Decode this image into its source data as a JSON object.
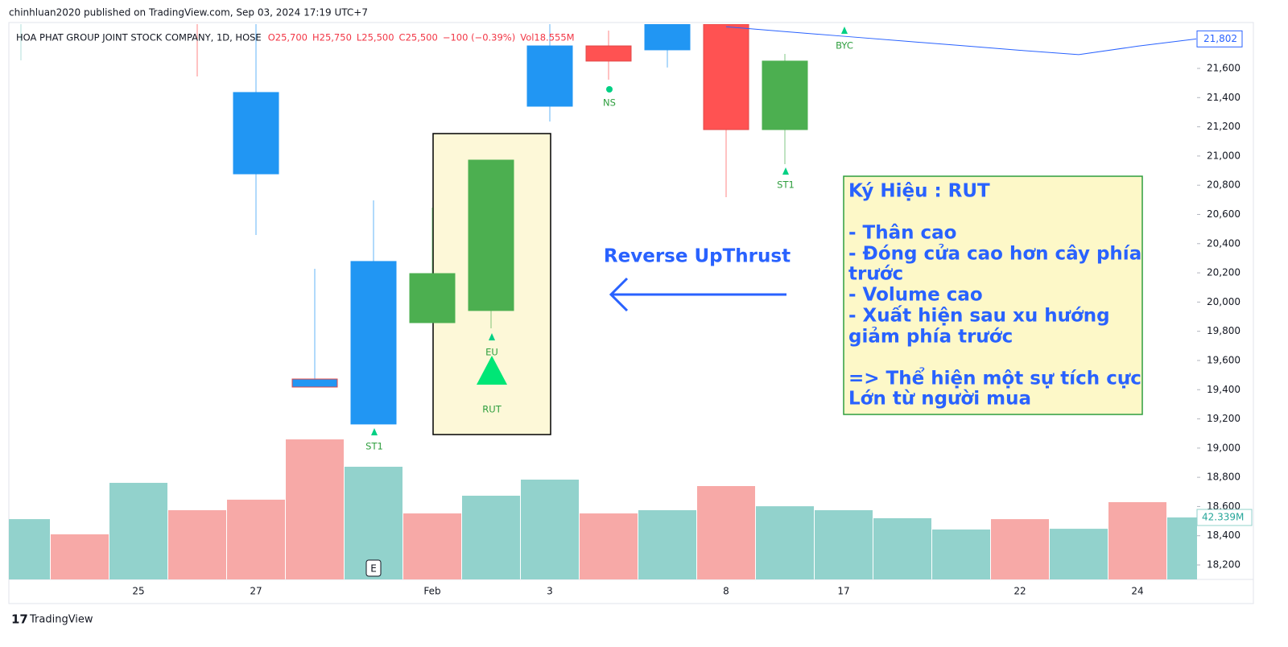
{
  "header": {
    "publisher": "chinhluan2020 published on TradingView.com, Sep 03, 2024 17:19 UTC+7",
    "brand": "TradingView"
  },
  "chart_data": {
    "type": "candlestick",
    "symbol": "HOA PHAT GROUP JOINT STOCK COMPANY, 1D, HOSE",
    "ohlc_legend": [
      "O25,700",
      "H25,750",
      "L25,500",
      "C25,500",
      "−100 (−0.39%)",
      "Vol18.555M"
    ],
    "categories": [
      null,
      null,
      "25",
      null,
      "27",
      null,
      null,
      "Feb",
      null,
      "3",
      null,
      null,
      "8",
      null,
      "17",
      null,
      null,
      "22",
      null,
      "24",
      null
    ],
    "open": [
      null,
      null,
      null,
      null,
      20878,
      19473,
      19165,
      19859,
      19942,
      21341,
      21754,
      21727,
      null,
      21181,
      null,
      null,
      null,
      null,
      null,
      null,
      null
    ],
    "high": [
      null,
      null,
      null,
      null,
      null,
      20228,
      20696,
      20647,
      20972,
      null,
      21859,
      null,
      null,
      21699,
      null,
      null,
      null,
      null,
      null,
      null,
      null
    ],
    "low": [
      21655,
      null,
      null,
      21545,
      20459,
      19418,
      19165,
      19859,
      19820,
      21236,
      21523,
      21606,
      20718,
      20944,
      null,
      null,
      null,
      null,
      null,
      null,
      null
    ],
    "close": [
      null,
      null,
      null,
      null,
      21435,
      19418,
      20278,
      20195,
      20972,
      21754,
      21650,
      null,
      21181,
      21650,
      null,
      null,
      null,
      null,
      null,
      null,
      null
    ],
    "candle_colors": [
      "#92d2cc",
      null,
      null,
      "#ff5252",
      "#2196f3",
      "#2196f3",
      "#2196f3",
      "#4caf50",
      "#4caf50",
      "#2196f3",
      "#ff5252",
      "#2196f3",
      "#ff5252",
      "#4caf50",
      null,
      null,
      null,
      null,
      null,
      null,
      null
    ],
    "line": {
      "color": "#2962ff",
      "values": [
        null,
        null,
        null,
        null,
        null,
        null,
        null,
        null,
        null,
        null,
        null,
        null,
        21885,
        21852,
        21820,
        21788,
        21756,
        21724,
        21694,
        21752,
        21802
      ],
      "value_labels": [
        null,
        null,
        null,
        null,
        null,
        null,
        null,
        null,
        null,
        null,
        null,
        null,
        null,
        null,
        null,
        null,
        null,
        null,
        null,
        null,
        "21,802"
      ]
    },
    "volume": {
      "values": [
        41.2,
        30.8,
        66.0,
        47.3,
        54.5,
        95.7,
        77.0,
        45.1,
        57.2,
        68.2,
        45.1,
        47.3,
        63.8,
        50.0,
        47.3,
        41.8,
        34.1,
        41.2,
        34.6,
        52.8,
        42.339
      ],
      "colors": [
        "#92d2cc",
        "#f7a9a7",
        "#92d2cc",
        "#f7a9a7",
        "#f7a9a7",
        "#f7a9a7",
        "#92d2cc",
        "#f7a9a7",
        "#92d2cc",
        "#92d2cc",
        "#f7a9a7",
        "#92d2cc",
        "#f7a9a7",
        "#92d2cc",
        "#92d2cc",
        "#92d2cc",
        "#92d2cc",
        "#f7a9a7",
        "#92d2cc",
        "#f7a9a7",
        "#92d2cc"
      ],
      "value_labels": [
        null,
        null,
        null,
        null,
        null,
        null,
        null,
        null,
        null,
        null,
        null,
        null,
        null,
        null,
        null,
        null,
        null,
        null,
        null,
        null,
        "42.339M"
      ]
    },
    "ylim": [
      18101,
      21903
    ],
    "yticks": [
      {
        "value": 18200,
        "label": "18,200"
      },
      {
        "value": 18400,
        "label": "18,400"
      },
      {
        "value": 18600,
        "label": "18,600"
      },
      {
        "value": 18800,
        "label": "18,800"
      },
      {
        "value": 19000,
        "label": "19,000"
      },
      {
        "value": 19200,
        "label": "19,200"
      },
      {
        "value": 19400,
        "label": "19,400"
      },
      {
        "value": 19600,
        "label": "19,600"
      },
      {
        "value": 19800,
        "label": "19,800"
      },
      {
        "value": 20000,
        "label": "20,000"
      },
      {
        "value": 20200,
        "label": "20,200"
      },
      {
        "value": 20400,
        "label": "20,400"
      },
      {
        "value": 20600,
        "label": "20,600"
      },
      {
        "value": 20800,
        "label": "20,800"
      },
      {
        "value": 21000,
        "label": "21,000"
      },
      {
        "value": 21200,
        "label": "21,200"
      },
      {
        "value": 21400,
        "label": "21,400"
      },
      {
        "value": 21600,
        "label": "21,600"
      }
    ],
    "signals": [
      {
        "label": "ST1"
      },
      {
        "label": "EU"
      },
      {
        "label": "RUT"
      },
      {
        "label": "NS"
      },
      {
        "label": "ST1"
      },
      {
        "label": "BYC"
      }
    ],
    "earnings_badge": "E",
    "annotation": "Reverse UpThrust",
    "note": [
      "Ký Hiệu : RUT",
      "- Thân cao",
      "- Đóng cửa cao hơn cây phía",
      "trước",
      "- Volume cao",
      "- Xuất hiện sau xu hướng",
      "giảm phía trước",
      "=> Thể hiện một sự tích cực",
      "Lớn từ người mua"
    ]
  }
}
